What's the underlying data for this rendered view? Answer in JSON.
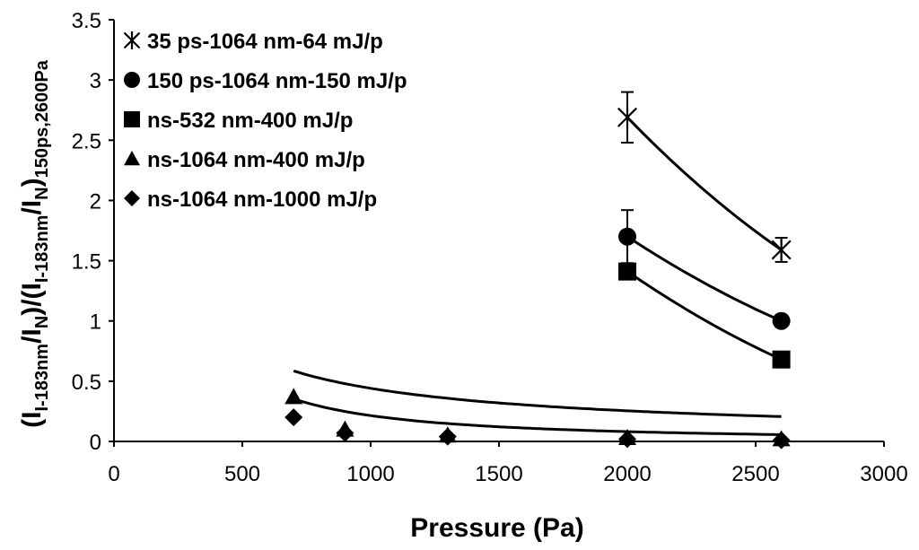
{
  "chart_data": {
    "type": "scatter",
    "title": "",
    "xlabel": "Pressure (Pa)",
    "ylabel": {
      "p1": "(I",
      "s1": "I-183nm",
      "p2": "/I",
      "s2": "N",
      "p3": ")/(I",
      "s3": "I-183nm",
      "p4": "/I",
      "s4": "N",
      "p5": ")",
      "s5": "150ps,2600Pa"
    },
    "xlim": [
      0,
      3000
    ],
    "ylim": [
      0,
      3.5
    ],
    "xticks": [
      "0",
      "500",
      "1000",
      "1500",
      "2000",
      "2500",
      "3000"
    ],
    "yticks": [
      "0",
      "0.5",
      "1",
      "1.5",
      "2",
      "2.5",
      "3",
      "3.5"
    ],
    "grid": false,
    "legend_position": "top-left",
    "series": [
      {
        "name": "35 ps-1064 nm-64 mJ/p",
        "marker": "star",
        "x": [
          2000,
          2600
        ],
        "y": [
          2.69,
          1.59
        ],
        "yerr": [
          0.21,
          0.1
        ],
        "fit": "curved"
      },
      {
        "name": "150 ps-1064 nm-150 mJ/p",
        "marker": "circle",
        "x": [
          2000,
          2600
        ],
        "y": [
          1.7,
          1.0
        ],
        "yerr": [
          0.22,
          0
        ],
        "fit": "curved"
      },
      {
        "name": "ns-532 nm-400 mJ/p",
        "marker": "square",
        "x": [
          2000,
          2600
        ],
        "y": [
          1.41,
          0.68
        ],
        "yerr": [
          0,
          0
        ],
        "fit": "curved"
      },
      {
        "name": "ns-1064 nm-400 mJ/p",
        "marker": "triangle",
        "x": [
          700,
          900,
          1300,
          2000,
          2600
        ],
        "y": [
          0.37,
          0.1,
          0.05,
          0.03,
          0.02
        ],
        "fit": "power",
        "fit_params": {
          "a": 107,
          "b": -0.795
        }
      },
      {
        "name": "ns-1064 nm-1000 mJ/p",
        "marker": "diamond",
        "x": [
          700,
          900,
          1300,
          2000,
          2600
        ],
        "y": [
          0.2,
          0.07,
          0.04,
          0.02,
          0.01
        ],
        "fit": "power",
        "fit_params": {
          "a": 3400,
          "b": -1.4
        }
      }
    ]
  }
}
